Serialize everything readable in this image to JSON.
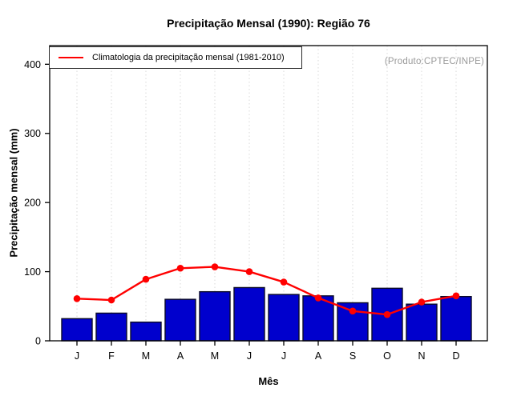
{
  "title": "Precipitação Mensal (1990): Região 76",
  "annotation": "(Produto:CPTEC/INPE)",
  "legend": {
    "label": "Climatologia da precipitação mensal (1981-2010)"
  },
  "chart_data": {
    "type": "bar",
    "title": "Precipitação Mensal (1990): Região 76",
    "xlabel": "Mês",
    "ylabel": "Precipitação mensal (mm)",
    "categories": [
      "J",
      "F",
      "M",
      "A",
      "M",
      "J",
      "J",
      "A",
      "S",
      "O",
      "N",
      "D"
    ],
    "yticks": [
      0,
      100,
      200,
      300,
      400
    ],
    "ylim": [
      0,
      427
    ],
    "grid": "vertical-dotted",
    "legend_position": "top-left",
    "annotation": "(Produto:CPTEC/INPE)",
    "series": [
      {
        "name": "Precipitação Mensal (1990)",
        "type": "bar",
        "color": "#0000CD",
        "values": [
          32,
          40,
          27,
          60,
          71,
          77,
          67,
          65,
          55,
          76,
          53,
          64
        ]
      },
      {
        "name": "Climatologia da precipitação mensal (1981-2010)",
        "type": "line",
        "color": "#FF0000",
        "values": [
          61,
          59,
          89,
          105,
          107,
          100,
          85,
          62,
          43,
          38,
          56,
          65
        ]
      }
    ],
    "colors": {
      "bar_fill": "#0000CD",
      "bar_border": "#0b0b28",
      "line": "#FF0000",
      "grid": "#d9d9d9",
      "frame": "#000000",
      "annotation": "#9a9a9a"
    }
  }
}
